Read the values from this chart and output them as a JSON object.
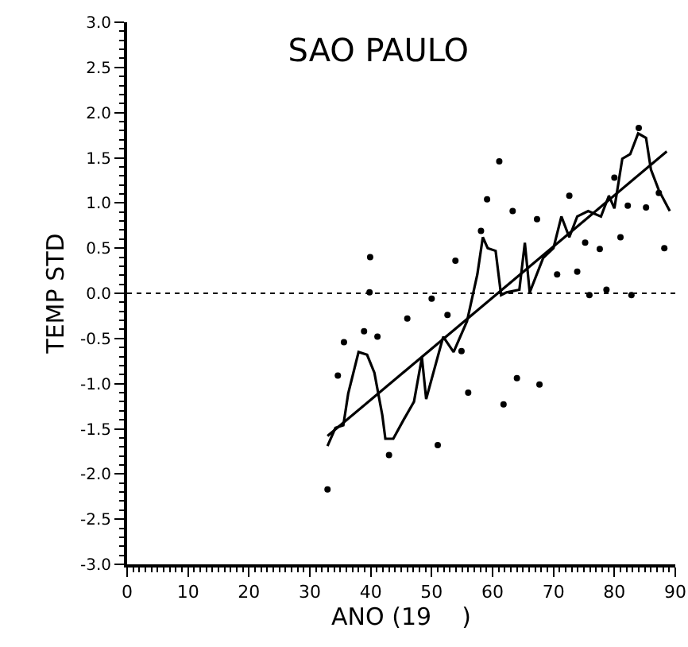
{
  "chart_data": {
    "type": "scatter",
    "title": "SAO PAULO",
    "xlabel": "ANO (19    )",
    "ylabel": "TEMP STD",
    "xlim": [
      0,
      90
    ],
    "xticks": [
      0,
      10,
      20,
      30,
      40,
      50,
      60,
      70,
      80,
      90
    ],
    "ylim": [
      -3,
      3
    ],
    "yticks": [
      {
        "value": -3,
        "label": "-3.0"
      },
      {
        "value": -2.5,
        "label": "-2.5"
      },
      {
        "value": -2,
        "label": "-2.0"
      },
      {
        "value": -1.5,
        "label": "-1.5"
      },
      {
        "value": -1,
        "label": "-1.0"
      },
      {
        "value": -0.5,
        "label": "-0.5"
      },
      {
        "value": 0,
        "label": "0.0"
      },
      {
        "value": 0.5,
        "label": "0.5"
      },
      {
        "value": 1,
        "label": "1.0"
      },
      {
        "value": 1.5,
        "label": "1.5"
      },
      {
        "value": 2,
        "label": "2.0"
      },
      {
        "value": 2.5,
        "label": "2.5"
      },
      {
        "value": 3,
        "label": "3.0"
      }
    ],
    "grid": false,
    "ref_lines": [
      {
        "axis": "y",
        "value": 0,
        "line_style": "dotted",
        "color": "#000000"
      }
    ],
    "series": [
      {
        "marker": "circle",
        "color": "#000000",
        "x": [
          32.9,
          34.6,
          35.6,
          38.9,
          39.8,
          39.9,
          41.1,
          43.0,
          46.0,
          50.0,
          51.0,
          52.6,
          53.9,
          54.9,
          56.0,
          58.1,
          59.1,
          61.1,
          61.8,
          63.3,
          64.0,
          67.3,
          67.7,
          70.6,
          72.6,
          73.9,
          75.2,
          75.9,
          77.6,
          78.7,
          80.0,
          81.0,
          82.2,
          82.8,
          84.0,
          85.2,
          87.3,
          88.2
        ],
        "values": [
          -2.17,
          -0.91,
          -0.54,
          -0.42,
          0.01,
          0.4,
          -0.48,
          -1.79,
          -0.28,
          -0.06,
          -1.68,
          -0.24,
          0.36,
          -0.64,
          -1.1,
          0.69,
          1.04,
          1.46,
          -1.23,
          0.91,
          -0.94,
          0.82,
          -1.01,
          0.21,
          1.08,
          0.24,
          0.56,
          -0.02,
          0.49,
          0.04,
          1.28,
          0.62,
          0.97,
          -0.02,
          1.83,
          0.95,
          1.11,
          0.5
        ]
      },
      {
        "type": "line",
        "marker": "none",
        "line_style": "solid",
        "color": "#000000",
        "x": [
          32.9,
          34.2,
          35.5,
          36.3,
          38.0,
          39.4,
          40.6,
          41.9,
          42.4,
          43.7,
          45.4,
          47.1,
          48.4,
          49.1,
          51.9,
          53.6,
          55.8,
          57.5,
          58.4,
          59.2,
          60.5,
          61.4,
          62.3,
          64.4,
          65.3,
          66.1,
          68.3,
          70.0,
          71.3,
          72.6,
          73.9,
          75.7,
          77.8,
          79.1,
          80.0,
          81.3,
          82.6,
          83.9,
          85.2,
          86.0,
          87.3,
          89.1
        ],
        "values": [
          -1.69,
          -1.49,
          -1.46,
          -1.11,
          -0.65,
          -0.68,
          -0.88,
          -1.35,
          -1.61,
          -1.61,
          -1.4,
          -1.2,
          -0.71,
          -1.17,
          -0.48,
          -0.65,
          -0.31,
          0.21,
          0.62,
          0.5,
          0.47,
          -0.02,
          0.01,
          0.04,
          0.56,
          0.01,
          0.39,
          0.5,
          0.85,
          0.62,
          0.85,
          0.91,
          0.85,
          1.08,
          0.94,
          1.49,
          1.54,
          1.77,
          1.72,
          1.37,
          1.14,
          0.91
        ]
      },
      {
        "type": "line",
        "marker": "none",
        "line_style": "solid",
        "color": "#000000",
        "x": [
          32.9,
          88.6
        ],
        "values": [
          -1.58,
          1.57
        ]
      }
    ]
  }
}
